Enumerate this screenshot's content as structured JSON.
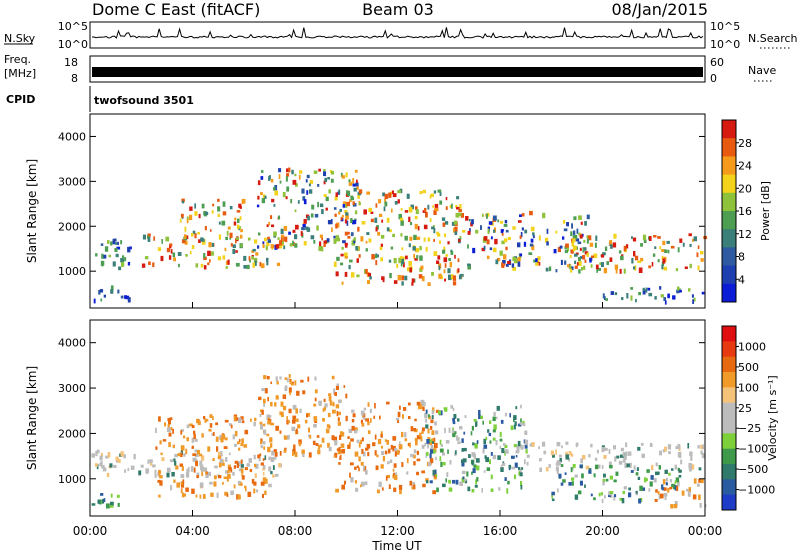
{
  "header": {
    "radar": "Dome C East (fitACF)",
    "beam": "Beam 03",
    "date": "08/Jan/2015"
  },
  "status": {
    "nsky_label": "N.Sky",
    "nsky_ticks": [
      "10^5",
      "10^0"
    ],
    "nsearch_label": "N.Search",
    "freq_label": "Freq.",
    "freq_unit": "[MHz]",
    "freq_ticks": [
      "18",
      "8"
    ],
    "nave_label": "Nave",
    "nave_ticks": [
      "60",
      "0"
    ],
    "cpid_label": "CPID",
    "cpid_value": "twofsound 3501"
  },
  "chart_data": [
    {
      "type": "heatmap",
      "name": "power-panel",
      "ylabel": "Slant Range [km]",
      "ylim": [
        180,
        4500
      ],
      "yticks": [
        "4000",
        "3000",
        "2000",
        "1000"
      ],
      "ytick_values": [
        4000,
        3000,
        2000,
        1000
      ],
      "colorbar": {
        "label": "Power [dB]",
        "ticks": [
          "28",
          "24",
          "20",
          "16",
          "12",
          "8",
          "4"
        ],
        "tick_values": [
          28,
          24,
          20,
          16,
          12,
          8,
          4
        ],
        "range": [
          0,
          32
        ],
        "colors": [
          "#0a1cd6",
          "#1e3fb0",
          "#2d5aa0",
          "#3a7f7a",
          "#4d9e52",
          "#8ec23a",
          "#f2d21a",
          "#f59a1a",
          "#e85a10",
          "#d61a10"
        ]
      },
      "regions": [
        {
          "t0": 0.0,
          "t1": 1.8,
          "r0": 1050,
          "r1": 1700,
          "level": "mid"
        },
        {
          "t0": 0.0,
          "t1": 1.5,
          "r0": 300,
          "r1": 650,
          "level": "mid"
        },
        {
          "t0": 2.0,
          "t1": 7.5,
          "r0": 1050,
          "r1": 1800,
          "level": "high"
        },
        {
          "t0": 3.5,
          "t1": 6.0,
          "r0": 1700,
          "r1": 2600,
          "level": "high"
        },
        {
          "t0": 6.5,
          "t1": 10.5,
          "r0": 1500,
          "r1": 3300,
          "level": "mixed"
        },
        {
          "t0": 9.5,
          "t1": 14.5,
          "r0": 700,
          "r1": 2800,
          "level": "high"
        },
        {
          "t0": 14.5,
          "t1": 19.5,
          "r0": 1000,
          "r1": 2300,
          "level": "mixed"
        },
        {
          "t0": 18.5,
          "t1": 24.0,
          "r0": 1000,
          "r1": 1800,
          "level": "high"
        },
        {
          "t0": 20.0,
          "t1": 24.0,
          "r0": 300,
          "r1": 650,
          "level": "mid"
        }
      ]
    },
    {
      "type": "heatmap",
      "name": "velocity-panel",
      "xlabel": "Time UT",
      "xticks": [
        "00:00",
        "04:00",
        "08:00",
        "12:00",
        "16:00",
        "20:00",
        "00:00"
      ],
      "xlim": [
        0,
        24
      ],
      "ylabel": "Slant Range [km]",
      "ylim": [
        180,
        4500
      ],
      "yticks": [
        "4000",
        "3000",
        "2000",
        "1000"
      ],
      "ytick_values": [
        4000,
        3000,
        2000,
        1000
      ],
      "colorbar": {
        "label": "Velocity [m s⁻¹]",
        "ticks": [
          "1000",
          "500",
          "100",
          "25",
          "−25",
          "−100",
          "−500",
          "−1000"
        ],
        "tick_values": [
          1000,
          500,
          100,
          25,
          -25,
          -100,
          -500,
          -1000
        ],
        "colors": [
          "#1e3cc8",
          "#2a5aa0",
          "#2f7a6a",
          "#3e9a4a",
          "#7ed03a",
          "#bcbcbc",
          "#bcbcbc",
          "#f5c27a",
          "#f09a2a",
          "#e86a10",
          "#e83a10",
          "#e00e10"
        ]
      },
      "regions": [
        {
          "t0": 0.0,
          "t1": 7.5,
          "r0": 1050,
          "r1": 1600,
          "level": "grey"
        },
        {
          "t0": 0.0,
          "t1": 1.5,
          "r0": 300,
          "r1": 650,
          "level": "pos"
        },
        {
          "t0": 2.5,
          "t1": 7.0,
          "r0": 600,
          "r1": 2400,
          "level": "neg"
        },
        {
          "t0": 6.5,
          "t1": 10.0,
          "r0": 1500,
          "r1": 3300,
          "level": "neg"
        },
        {
          "t0": 9.5,
          "t1": 13.5,
          "r0": 700,
          "r1": 2700,
          "level": "neg"
        },
        {
          "t0": 13.0,
          "t1": 17.0,
          "r0": 700,
          "r1": 2600,
          "level": "pos"
        },
        {
          "t0": 16.0,
          "t1": 24.0,
          "r0": 1200,
          "r1": 1800,
          "level": "grey"
        },
        {
          "t0": 18.0,
          "t1": 23.0,
          "r0": 500,
          "r1": 1300,
          "level": "pos"
        },
        {
          "t0": 22.0,
          "t1": 24.0,
          "r0": 400,
          "r1": 1000,
          "level": "neg"
        }
      ]
    }
  ]
}
